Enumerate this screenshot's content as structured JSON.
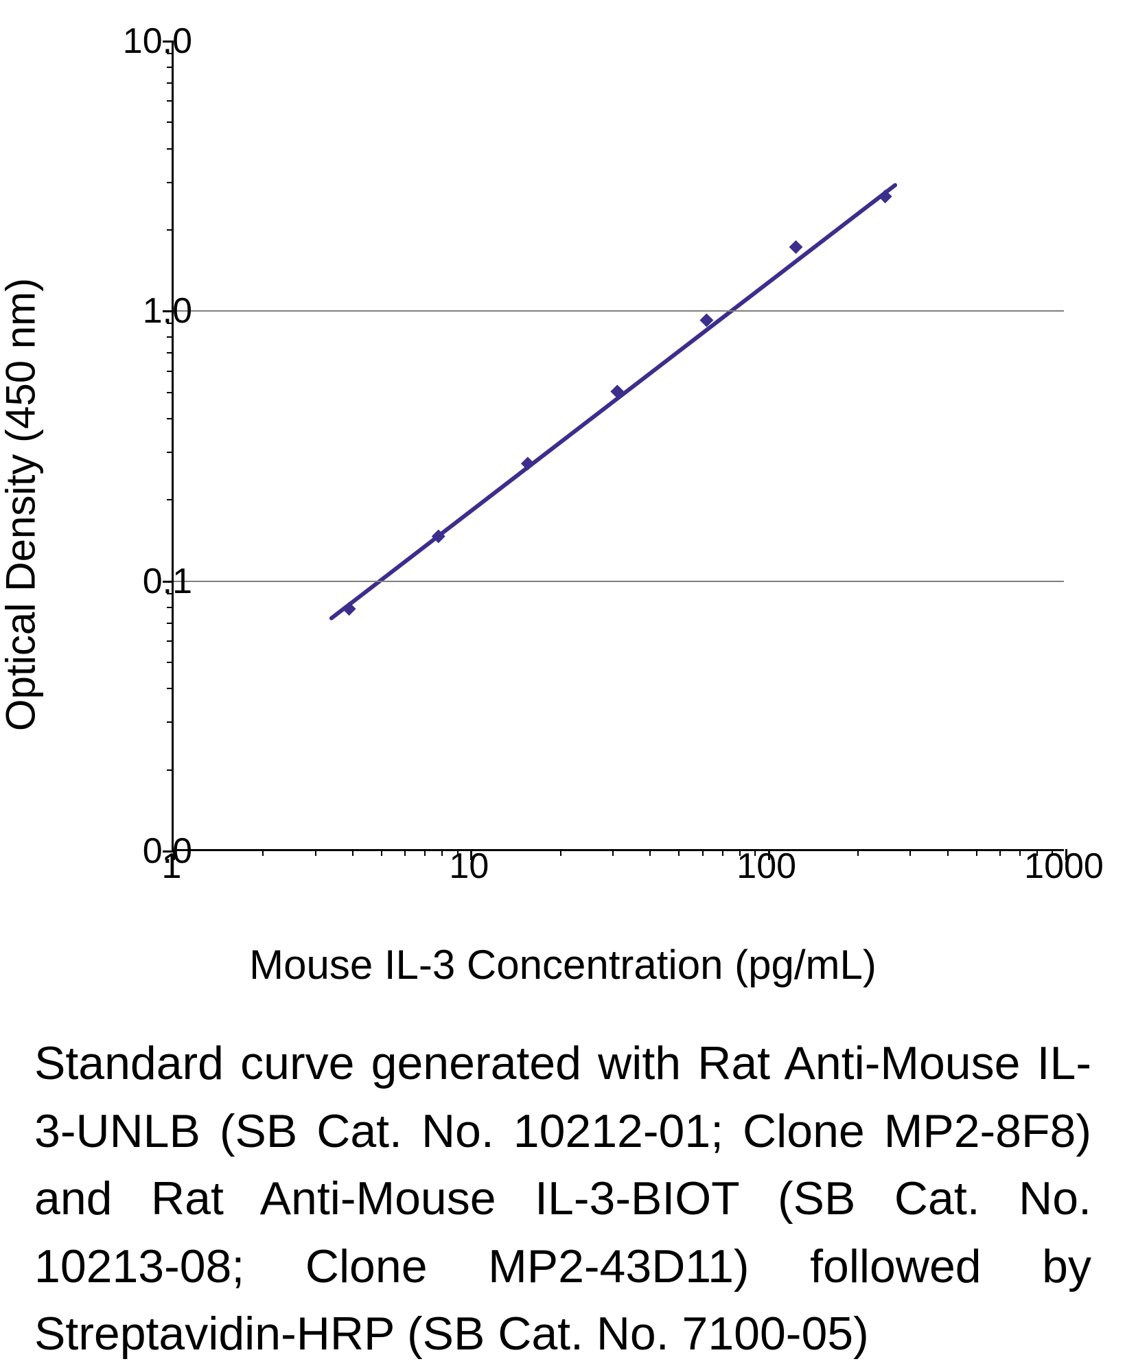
{
  "chart": {
    "type": "scatter-line-loglog",
    "xlabel": "Mouse IL-3 Concentration (pg/mL)",
    "ylabel": "Optical Density (450 nm)",
    "xlabel_fontsize": 60,
    "ylabel_fontsize": 60,
    "tick_fontsize": 52,
    "xlim": [
      1,
      1000
    ],
    "ylim_log": [
      0.01,
      10
    ],
    "background_color": "#ffffff",
    "axis_color": "#000000",
    "grid_color": "#7f7f7f",
    "series_color": "#3b2e8c",
    "marker_size": 20,
    "marker_shape": "diamond",
    "line_width": 6,
    "x_major_ticks": [
      1,
      10,
      100,
      1000
    ],
    "x_tick_labels": [
      "1",
      "10",
      "100",
      "1000"
    ],
    "y_major_ticks": [
      0.0,
      0.1,
      1.0,
      10.0
    ],
    "y_tick_labels": [
      "0.0",
      "0.1",
      "1.0",
      "10.0"
    ],
    "y_gridlines_at": [
      0.1,
      1.0
    ],
    "data_points": [
      {
        "x": 3.9,
        "y": 0.078
      },
      {
        "x": 7.8,
        "y": 0.145
      },
      {
        "x": 15.6,
        "y": 0.27
      },
      {
        "x": 31.25,
        "y": 0.5
      },
      {
        "x": 62.5,
        "y": 0.92
      },
      {
        "x": 125,
        "y": 1.72
      },
      {
        "x": 250,
        "y": 2.65
      }
    ],
    "fit_line": {
      "x1": 3.4,
      "y1": 0.072,
      "x2": 270,
      "y2": 2.92
    }
  },
  "caption": "Standard curve generated with Rat Anti-Mouse IL-3-UNLB (SB Cat. No. 10212-01; Clone MP2-8F8) and Rat Anti-Mouse IL-3-BIOT (SB Cat. No. 10213-08; Clone MP2-43D11) followed by Streptavidin-HRP (SB Cat. No. 7100-05)"
}
